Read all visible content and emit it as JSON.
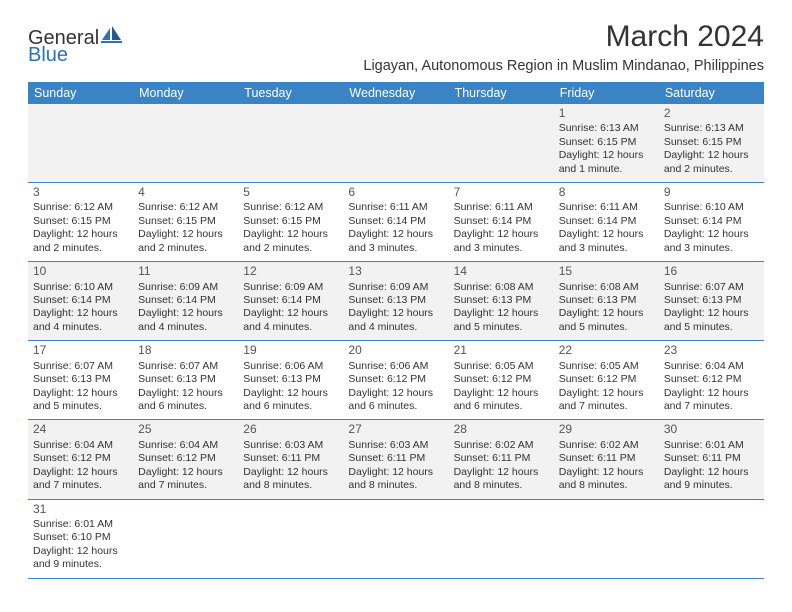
{
  "logo": {
    "part1": "General",
    "part2": "Blue"
  },
  "title": "March 2024",
  "subtitle": "Ligayan, Autonomous Region in Muslim Mindanao, Philippines",
  "colors": {
    "header_bg": "#3a84c5",
    "header_text": "#ffffff",
    "row_alt_bg": "#f2f2f2",
    "row_bg": "#ffffff",
    "border": "#3a84c5",
    "text": "#333333",
    "logo_blue": "#2b72b9"
  },
  "typography": {
    "title_fontsize": 30,
    "subtitle_fontsize": 14.5,
    "weekday_fontsize": 12.5,
    "cell_fontsize": 10.5,
    "daynum_fontsize": 12
  },
  "weekdays": [
    "Sunday",
    "Monday",
    "Tuesday",
    "Wednesday",
    "Thursday",
    "Friday",
    "Saturday"
  ],
  "weeks": [
    [
      null,
      null,
      null,
      null,
      null,
      {
        "n": "1",
        "sr": "6:13 AM",
        "ss": "6:15 PM",
        "dl": "12 hours and 1 minute."
      },
      {
        "n": "2",
        "sr": "6:13 AM",
        "ss": "6:15 PM",
        "dl": "12 hours and 2 minutes."
      }
    ],
    [
      {
        "n": "3",
        "sr": "6:12 AM",
        "ss": "6:15 PM",
        "dl": "12 hours and 2 minutes."
      },
      {
        "n": "4",
        "sr": "6:12 AM",
        "ss": "6:15 PM",
        "dl": "12 hours and 2 minutes."
      },
      {
        "n": "5",
        "sr": "6:12 AM",
        "ss": "6:15 PM",
        "dl": "12 hours and 2 minutes."
      },
      {
        "n": "6",
        "sr": "6:11 AM",
        "ss": "6:14 PM",
        "dl": "12 hours and 3 minutes."
      },
      {
        "n": "7",
        "sr": "6:11 AM",
        "ss": "6:14 PM",
        "dl": "12 hours and 3 minutes."
      },
      {
        "n": "8",
        "sr": "6:11 AM",
        "ss": "6:14 PM",
        "dl": "12 hours and 3 minutes."
      },
      {
        "n": "9",
        "sr": "6:10 AM",
        "ss": "6:14 PM",
        "dl": "12 hours and 3 minutes."
      }
    ],
    [
      {
        "n": "10",
        "sr": "6:10 AM",
        "ss": "6:14 PM",
        "dl": "12 hours and 4 minutes."
      },
      {
        "n": "11",
        "sr": "6:09 AM",
        "ss": "6:14 PM",
        "dl": "12 hours and 4 minutes."
      },
      {
        "n": "12",
        "sr": "6:09 AM",
        "ss": "6:14 PM",
        "dl": "12 hours and 4 minutes."
      },
      {
        "n": "13",
        "sr": "6:09 AM",
        "ss": "6:13 PM",
        "dl": "12 hours and 4 minutes."
      },
      {
        "n": "14",
        "sr": "6:08 AM",
        "ss": "6:13 PM",
        "dl": "12 hours and 5 minutes."
      },
      {
        "n": "15",
        "sr": "6:08 AM",
        "ss": "6:13 PM",
        "dl": "12 hours and 5 minutes."
      },
      {
        "n": "16",
        "sr": "6:07 AM",
        "ss": "6:13 PM",
        "dl": "12 hours and 5 minutes."
      }
    ],
    [
      {
        "n": "17",
        "sr": "6:07 AM",
        "ss": "6:13 PM",
        "dl": "12 hours and 5 minutes."
      },
      {
        "n": "18",
        "sr": "6:07 AM",
        "ss": "6:13 PM",
        "dl": "12 hours and 6 minutes."
      },
      {
        "n": "19",
        "sr": "6:06 AM",
        "ss": "6:13 PM",
        "dl": "12 hours and 6 minutes."
      },
      {
        "n": "20",
        "sr": "6:06 AM",
        "ss": "6:12 PM",
        "dl": "12 hours and 6 minutes."
      },
      {
        "n": "21",
        "sr": "6:05 AM",
        "ss": "6:12 PM",
        "dl": "12 hours and 6 minutes."
      },
      {
        "n": "22",
        "sr": "6:05 AM",
        "ss": "6:12 PM",
        "dl": "12 hours and 7 minutes."
      },
      {
        "n": "23",
        "sr": "6:04 AM",
        "ss": "6:12 PM",
        "dl": "12 hours and 7 minutes."
      }
    ],
    [
      {
        "n": "24",
        "sr": "6:04 AM",
        "ss": "6:12 PM",
        "dl": "12 hours and 7 minutes."
      },
      {
        "n": "25",
        "sr": "6:04 AM",
        "ss": "6:12 PM",
        "dl": "12 hours and 7 minutes."
      },
      {
        "n": "26",
        "sr": "6:03 AM",
        "ss": "6:11 PM",
        "dl": "12 hours and 8 minutes."
      },
      {
        "n": "27",
        "sr": "6:03 AM",
        "ss": "6:11 PM",
        "dl": "12 hours and 8 minutes."
      },
      {
        "n": "28",
        "sr": "6:02 AM",
        "ss": "6:11 PM",
        "dl": "12 hours and 8 minutes."
      },
      {
        "n": "29",
        "sr": "6:02 AM",
        "ss": "6:11 PM",
        "dl": "12 hours and 8 minutes."
      },
      {
        "n": "30",
        "sr": "6:01 AM",
        "ss": "6:11 PM",
        "dl": "12 hours and 9 minutes."
      }
    ],
    [
      {
        "n": "31",
        "sr": "6:01 AM",
        "ss": "6:10 PM",
        "dl": "12 hours and 9 minutes."
      },
      null,
      null,
      null,
      null,
      null,
      null
    ]
  ],
  "labels": {
    "sunrise": "Sunrise:",
    "sunset": "Sunset:",
    "daylight": "Daylight:"
  }
}
